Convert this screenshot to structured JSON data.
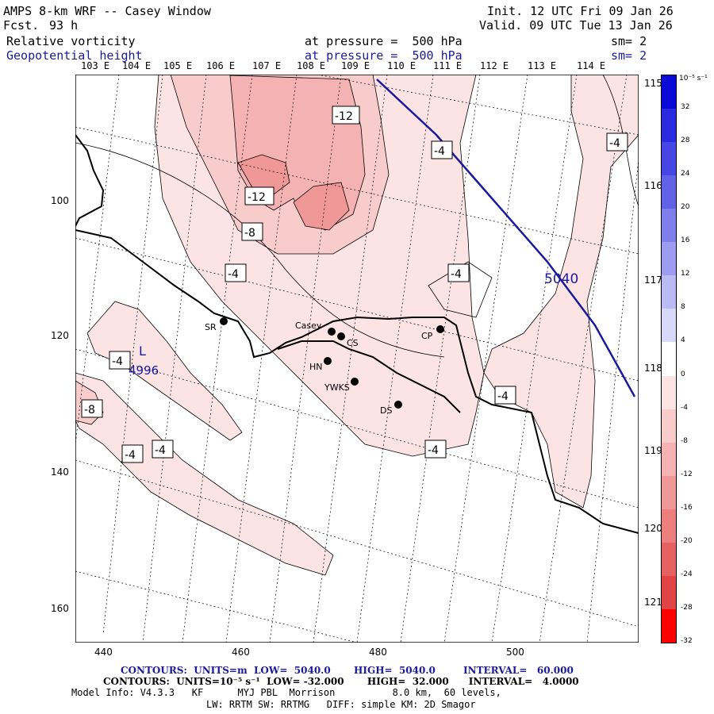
{
  "header": {
    "title": "AMPS 8-km WRF -- Casey Window",
    "fcst_label": "Fcst.",
    "fcst_value": "93 h",
    "init": "Init. 12 UTC Fri 09 Jan 26",
    "valid": "Valid. 09 UTC Tue 13 Jan 26",
    "field1": "Relative vorticity",
    "field1_level": "at pressure =  500 hPa",
    "field1_sm": "sm= 2",
    "field2": "Geopotential height",
    "field2_level": "at pressure =  500 hPa",
    "field2_sm": "sm= 2"
  },
  "lon_labels": [
    "103 E",
    "104 E",
    "105 E",
    "106 E",
    "107 E",
    "108 E",
    "109 E",
    "110 E",
    "111 E",
    "112 E",
    "113 E",
    "114 E"
  ],
  "right_lon_labels": [
    "115 E",
    "116 E",
    "117 E",
    "118 E",
    "119 E",
    "120 E",
    "121 E"
  ],
  "y_axis": [
    "100",
    "120",
    "140",
    "160"
  ],
  "x_axis": [
    "440",
    "460",
    "480",
    "500"
  ],
  "colorbar": {
    "unit": "10⁻⁵ s⁻¹",
    "labels": [
      "32",
      "28",
      "24",
      "20",
      "16",
      "12",
      "8",
      "4",
      "0",
      "-4",
      "-8",
      "-12",
      "-16",
      "-20",
      "-24",
      "-28",
      "-32"
    ],
    "colors": [
      "#0a0ad8",
      "#2a2ae0",
      "#4646e4",
      "#6262e8",
      "#7e7eec",
      "#9c9cf0",
      "#babaf4",
      "#d8d8f8",
      "#ffffff",
      "#fce4e4",
      "#f9cccc",
      "#f5b2b2",
      "#f09898",
      "#ec7e7e",
      "#e66262",
      "#e04444",
      "#ff0000"
    ]
  },
  "stations": [
    {
      "name": "SR"
    },
    {
      "name": "Casey"
    },
    {
      "name": "CS"
    },
    {
      "name": "HN"
    },
    {
      "name": "YWKS"
    },
    {
      "name": "DS"
    },
    {
      "name": "CP"
    }
  ],
  "contour_labels": {
    "neg12_a": "-12",
    "neg12_b": "-12",
    "neg8_a": "-8",
    "neg8_b": "-8",
    "neg4_a": "-4",
    "neg4_b": "-4",
    "neg4_c": "-4",
    "neg4_d": "-4",
    "neg4_e": "-4",
    "neg4_f": "-4",
    "neg4_g": "-4",
    "neg4_h": "-4",
    "neg4_i": "-4",
    "height_5040": "5040",
    "low_L": "L",
    "low_value": "4996"
  },
  "footer": {
    "line1_a": "CONTOURS:  UNITS=m  LOW=  5040.0",
    "line1_b": "HIGH=  5040.0",
    "line1_c": "INTERVAL=   60.000",
    "line2": "CONTOURS:  UNITS=10⁻⁵ s⁻¹  LOW= -32.000       HIGH=  32.000      INTERVAL=   4.0000",
    "line3": "Model Info: V4.3.3   KF      MYJ PBL  Morrison          8.0 km,  60 levels,",
    "line4": "LW: RRTM SW: RRTMG   DIFF: simple KM: 2D Smagor"
  }
}
